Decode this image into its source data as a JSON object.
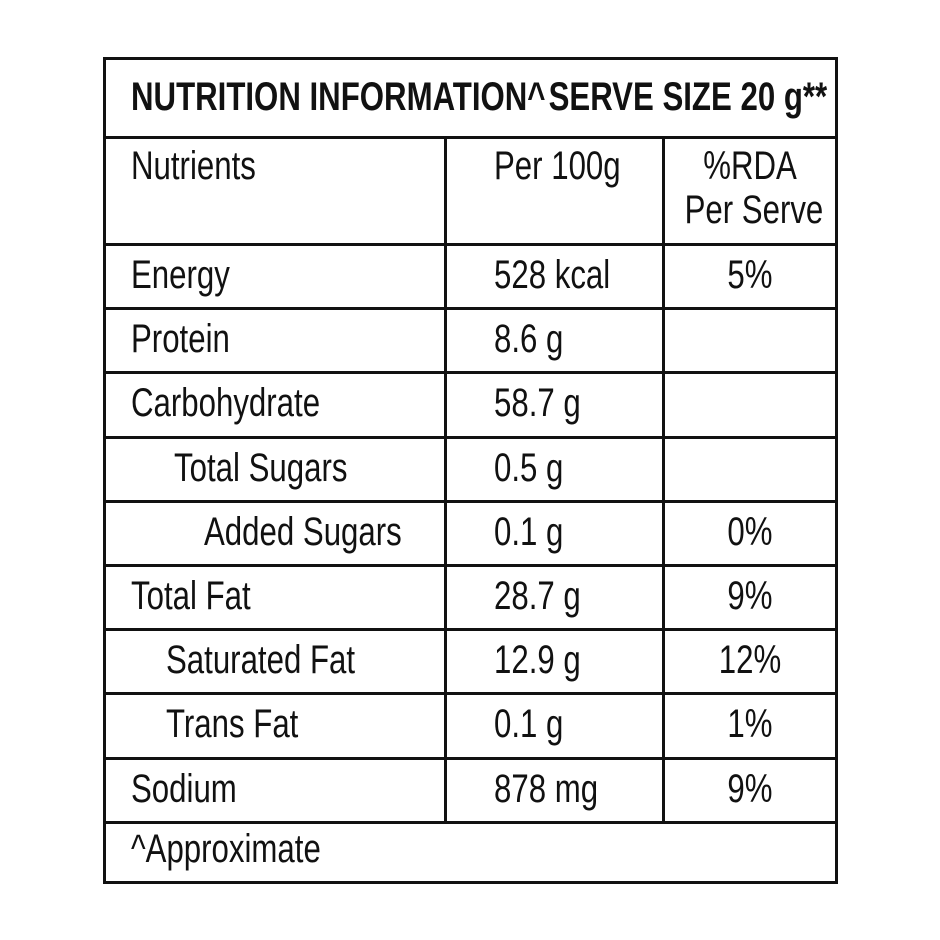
{
  "header": {
    "title": "NUTRITION INFORMATION^",
    "serve_size": "SERVE SIZE 20 g**"
  },
  "columns": {
    "nutrient": "Nutrients",
    "per100": "Per 100g",
    "rda_line1": "%RDA",
    "rda_line2": "Per Serve"
  },
  "rows": [
    {
      "name": "Energy",
      "per100": "528 kcal",
      "rda": "5%",
      "indent": 0
    },
    {
      "name": "Protein",
      "per100": "8.6 g",
      "rda": "",
      "indent": 0
    },
    {
      "name": "Carbohydrate",
      "per100": "58.7 g",
      "rda": "",
      "indent": 0
    },
    {
      "name": "Total Sugars",
      "per100": "0.5 g",
      "rda": "",
      "indent": 1
    },
    {
      "name": "Added Sugars",
      "per100": "0.1 g",
      "rda": "0%",
      "indent": 2
    },
    {
      "name": "Total Fat",
      "per100": "28.7 g",
      "rda": "9%",
      "indent": 0
    },
    {
      "name": "Saturated Fat",
      "per100": "12.9 g",
      "rda": "12%",
      "indent": 1
    },
    {
      "name": "Trans Fat",
      "per100": "0.1 g",
      "rda": "1%",
      "indent": 1
    },
    {
      "name": "Sodium",
      "per100": "878 mg",
      "rda": "9%",
      "indent": 0
    }
  ],
  "footnote": "^Approximate"
}
